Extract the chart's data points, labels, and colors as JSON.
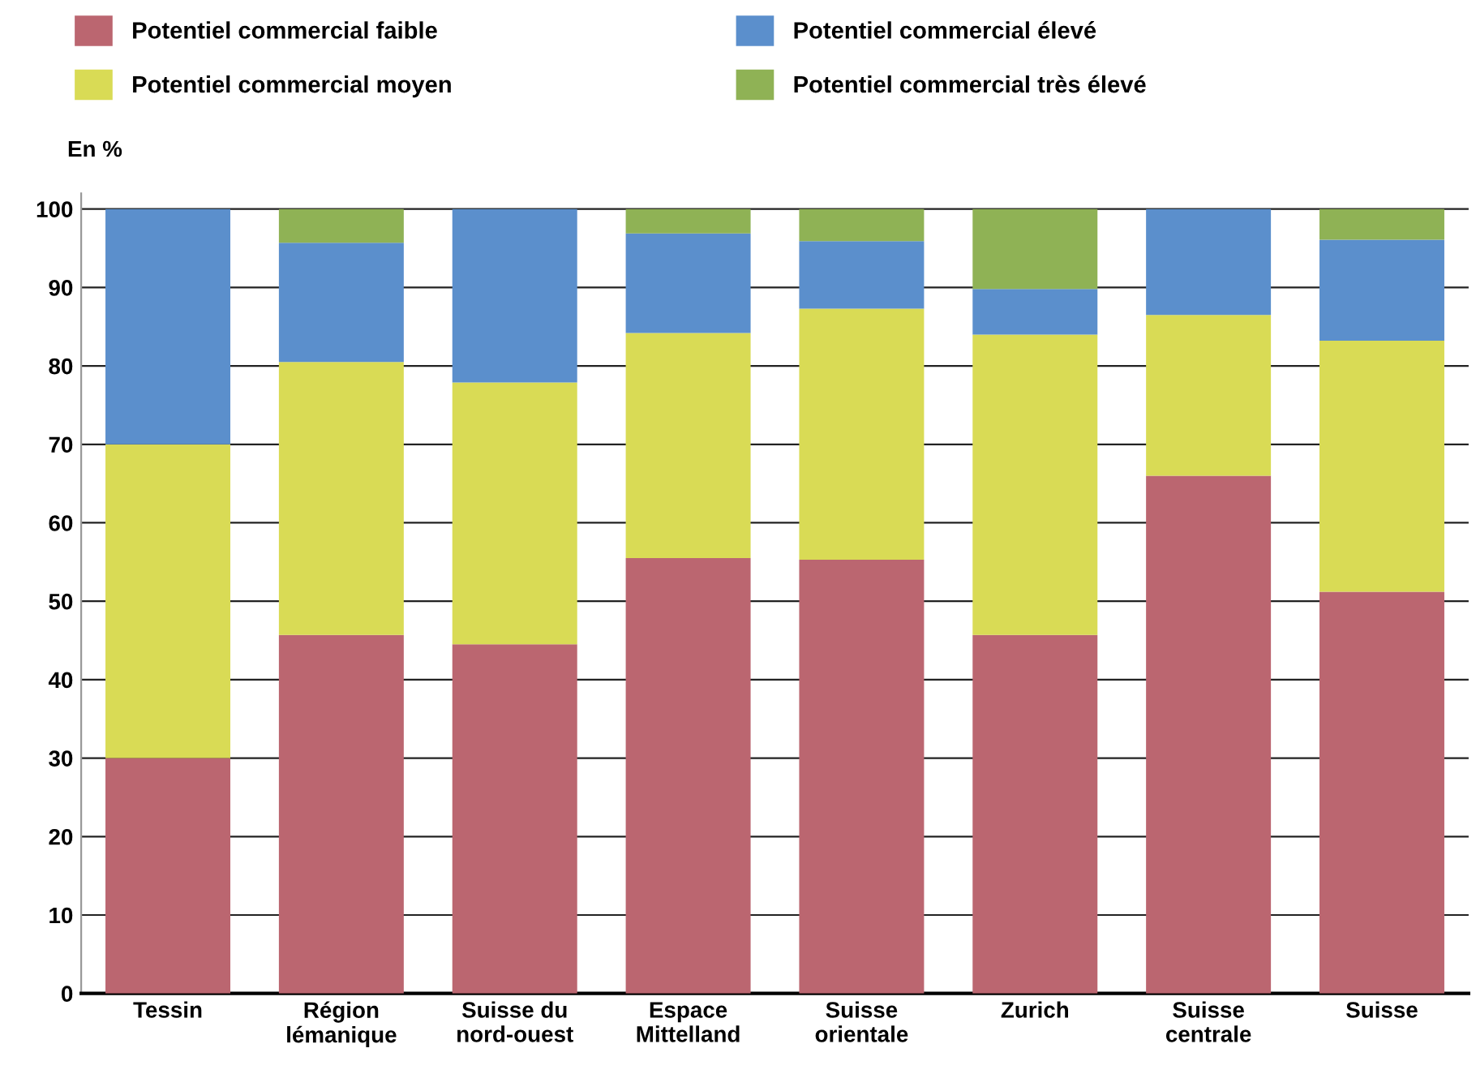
{
  "chart_data": {
    "type": "bar",
    "stacked": true,
    "ylabel": "En %",
    "categories": [
      "Tessin",
      "Région\nlémanique",
      "Suisse du\nnord-ouest",
      "Espace\nMittelland",
      "Suisse\norientale",
      "Zurich",
      "Suisse\ncentrale",
      "Suisse"
    ],
    "series": [
      {
        "name": "Potentiel commercial faible",
        "color": "#bb6670",
        "values": [
          30,
          45.7,
          44.5,
          55.5,
          55.3,
          45.7,
          66.0,
          51.2
        ]
      },
      {
        "name": "Potentiel commercial moyen",
        "color": "#d9db55",
        "values": [
          40,
          34.8,
          33.4,
          28.7,
          32.0,
          38.3,
          20.5,
          32.0
        ]
      },
      {
        "name": "Potentiel commercial élevé",
        "color": "#5b8fcc",
        "values": [
          30,
          15.2,
          22.1,
          12.7,
          8.6,
          5.8,
          13.5,
          12.9
        ]
      },
      {
        "name": "Potentiel commercial très élevé",
        "color": "#8fb255",
        "values": [
          0,
          4.3,
          0,
          3.1,
          4.1,
          10.2,
          0,
          3.9
        ]
      }
    ],
    "ylim": [
      0,
      102
    ],
    "yticks": [
      0,
      10,
      20,
      30,
      40,
      50,
      60,
      70,
      80,
      90,
      100
    ],
    "grid": "y",
    "legend": "top"
  }
}
